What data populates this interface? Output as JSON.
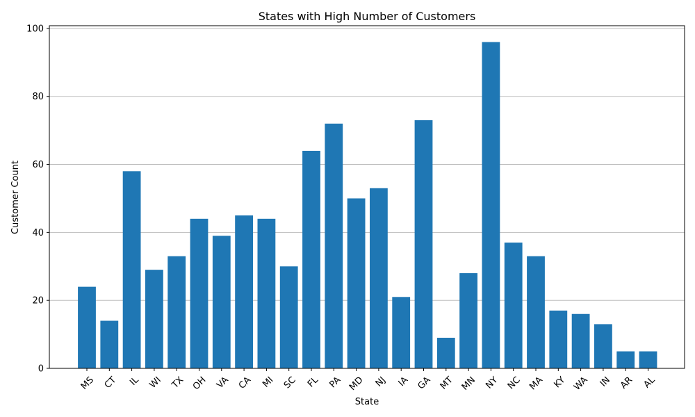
{
  "chart_data": {
    "type": "bar",
    "title": "States with High Number of Customers",
    "xlabel": "State",
    "ylabel": "Customer Count",
    "categories": [
      "MS",
      "CT",
      "IL",
      "WI",
      "TX",
      "OH",
      "VA",
      "CA",
      "MI",
      "SC",
      "FL",
      "PA",
      "MD",
      "NJ",
      "IA",
      "GA",
      "MT",
      "MN",
      "NY",
      "NC",
      "MA",
      "KY",
      "WA",
      "IN",
      "AR",
      "AL"
    ],
    "values": [
      24,
      14,
      58,
      29,
      33,
      44,
      39,
      45,
      44,
      30,
      64,
      72,
      50,
      53,
      21,
      73,
      9,
      28,
      96,
      37,
      33,
      17,
      16,
      13,
      5,
      5
    ],
    "ylim": [
      0,
      100
    ],
    "yticks": [
      0,
      20,
      40,
      60,
      80,
      100
    ],
    "grid": "y-axis horizontal lines",
    "bar_color": "#1f77b4",
    "x_tick_rotation": "45 degrees"
  }
}
